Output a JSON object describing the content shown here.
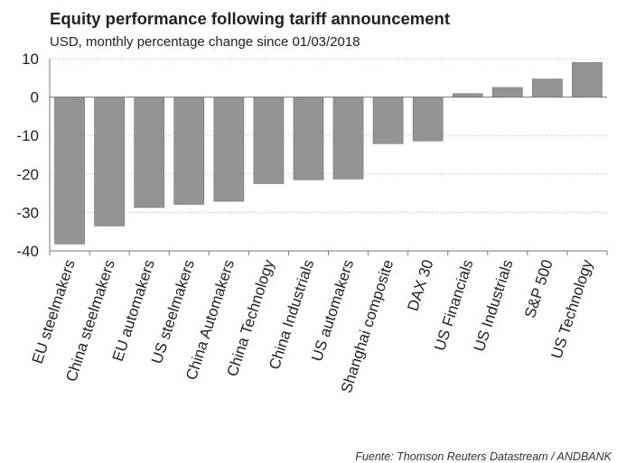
{
  "chart_data": {
    "type": "bar",
    "title": "Equity performance following tariff announcement",
    "subtitle": "USD, monthly percentage change since 01/03/2018",
    "source": "Fuente: Thomson Reuters Datastream / ANDBANK",
    "categories": [
      "EU steelmakers",
      "China steelmakers",
      "EU automakers",
      "US steelmakers",
      "China Automakers",
      "China Technology",
      "China Industrials",
      "US automakers",
      "Shanghai composite",
      "DAX 30",
      "US Financials",
      "US Industrials",
      "S&P 500",
      "US Technology"
    ],
    "values": [
      -38.2,
      -33.5,
      -28.7,
      -27.9,
      -27.1,
      -22.5,
      -21.5,
      -21.3,
      -12.1,
      -11.4,
      0.9,
      2.5,
      4.7,
      9.0
    ],
    "ylim": [
      -40,
      10
    ],
    "yticks": [
      10,
      0,
      -10,
      -20,
      -30,
      -40
    ],
    "ytick_labels": [
      "10",
      "0",
      "-10",
      "-20",
      "-30",
      "-40"
    ],
    "xlabel": "",
    "ylabel": "",
    "grid": true,
    "bar_color": "#949494",
    "bar_edge_color": "#6e6e6e",
    "grid_color": "#bdbdbd"
  }
}
